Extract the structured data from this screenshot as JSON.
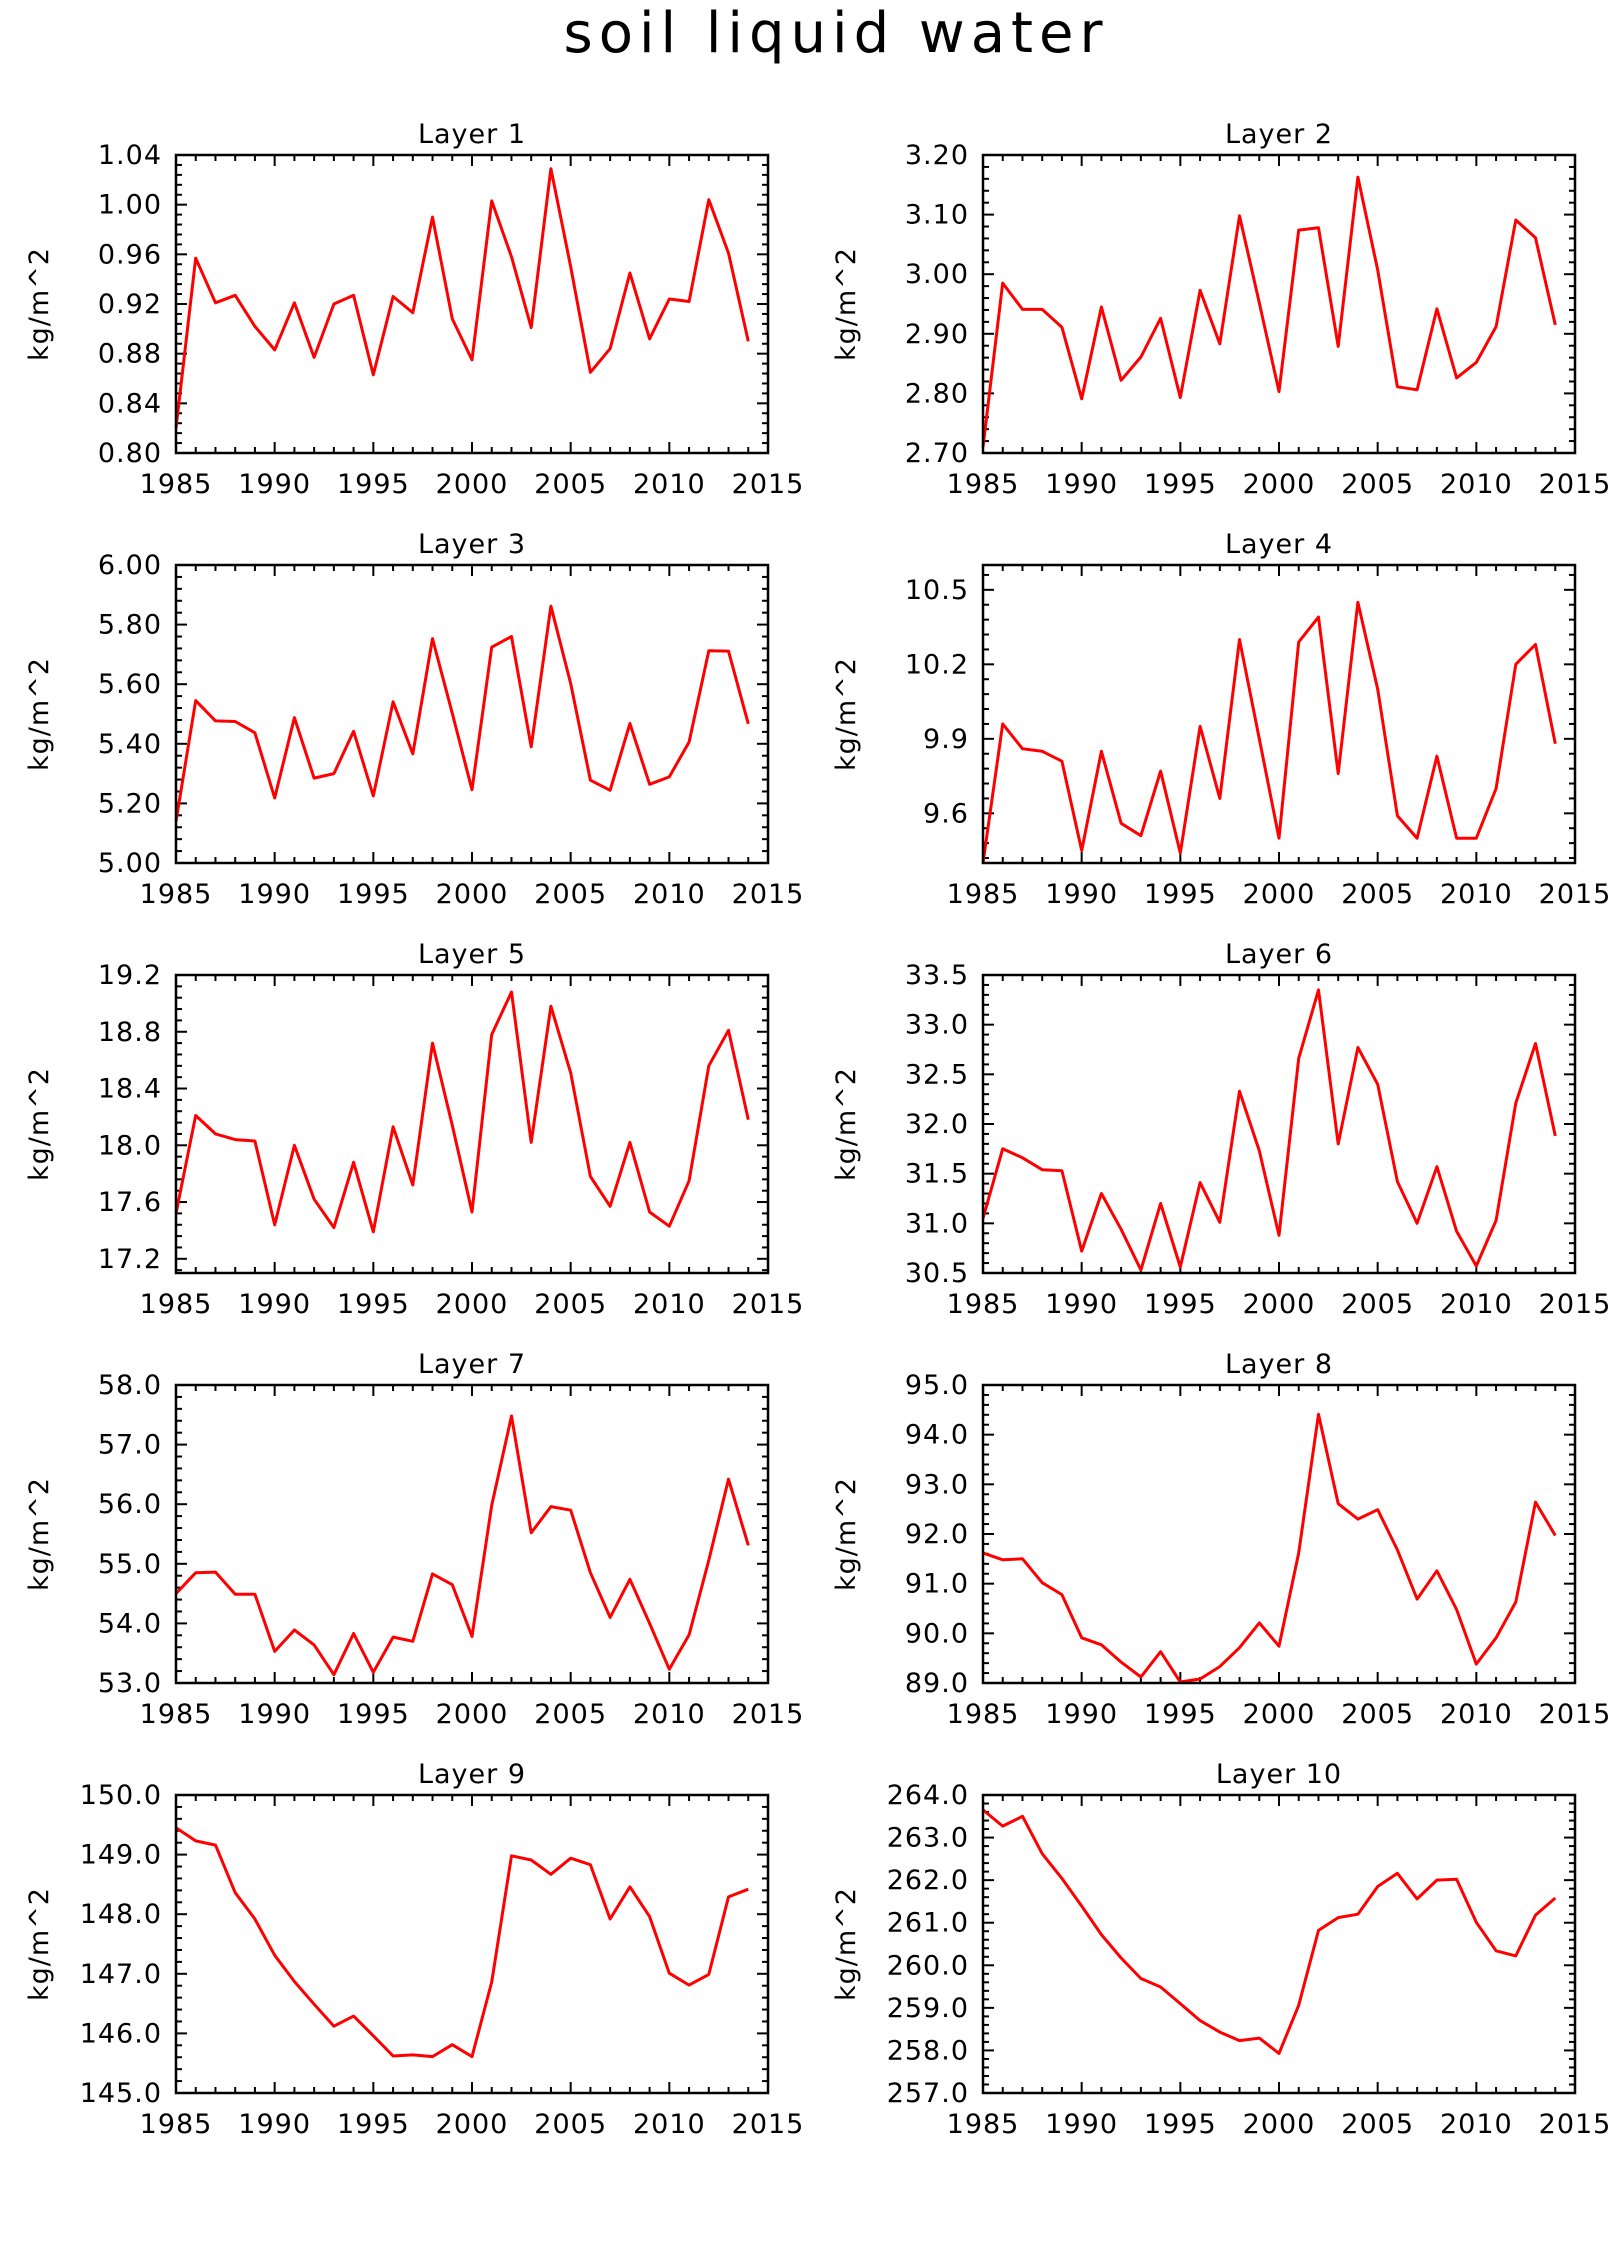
{
  "title": "soil liquid water",
  "footer_label": "",
  "chart_data": [
    {
      "type": "line",
      "title": "Layer 1",
      "ylabel": "kg/m^2",
      "x": [
        1985,
        1986,
        1987,
        1988,
        1989,
        1990,
        1991,
        1992,
        1993,
        1994,
        1995,
        1996,
        1997,
        1998,
        1999,
        2000,
        2001,
        2002,
        2003,
        2004,
        2005,
        2006,
        2007,
        2008,
        2009,
        2010,
        2011,
        2012,
        2013,
        2014
      ],
      "values": [
        0.82,
        0.957,
        0.921,
        0.927,
        0.902,
        0.883,
        0.921,
        0.877,
        0.92,
        0.927,
        0.863,
        0.926,
        0.913,
        0.99,
        0.908,
        0.875,
        1.003,
        0.958,
        0.901,
        1.029,
        0.95,
        0.865,
        0.884,
        0.945,
        0.892,
        0.924,
        0.922,
        1.004,
        0.961,
        0.89
      ],
      "ylim": [
        0.8,
        1.04
      ],
      "yticks": [
        "0.80",
        "0.84",
        "0.88",
        "0.92",
        "0.96",
        "1.00",
        "1.04"
      ],
      "xlim": [
        1985,
        2015
      ],
      "xticks": [
        "1985",
        "1990",
        "1995",
        "2000",
        "2005",
        "2010",
        "2015"
      ],
      "color": "#ff0000"
    },
    {
      "type": "line",
      "title": "Layer 2",
      "ylabel": "kg/m^2",
      "x": [
        1985,
        1986,
        1987,
        1988,
        1989,
        1990,
        1991,
        1992,
        1993,
        1994,
        1995,
        1996,
        1997,
        1998,
        1999,
        2000,
        2001,
        2002,
        2003,
        2004,
        2005,
        2006,
        2007,
        2008,
        2009,
        2010,
        2011,
        2012,
        2013,
        2014
      ],
      "values": [
        2.71,
        2.985,
        2.941,
        2.941,
        2.911,
        2.791,
        2.945,
        2.822,
        2.861,
        2.926,
        2.793,
        2.973,
        2.883,
        3.098,
        2.952,
        2.803,
        3.074,
        3.078,
        2.879,
        3.163,
        3.007,
        2.811,
        2.806,
        2.942,
        2.826,
        2.852,
        2.912,
        3.091,
        3.061,
        2.915
      ],
      "ylim": [
        2.7,
        3.2
      ],
      "yticks": [
        "2.70",
        "2.80",
        "2.90",
        "3.00",
        "3.10",
        "3.20"
      ],
      "xlim": [
        1985,
        2015
      ],
      "xticks": [
        "1985",
        "1990",
        "1995",
        "2000",
        "2005",
        "2010",
        "2015"
      ],
      "color": "#ff0000"
    },
    {
      "type": "line",
      "title": "Layer 3",
      "ylabel": "kg/m^2",
      "x": [
        1985,
        1986,
        1987,
        1988,
        1989,
        1990,
        1991,
        1992,
        1993,
        1994,
        1995,
        1996,
        1997,
        1998,
        1999,
        2000,
        2001,
        2002,
        2003,
        2004,
        2005,
        2006,
        2007,
        2008,
        2009,
        2010,
        2011,
        2012,
        2013,
        2014
      ],
      "values": [
        5.14,
        5.545,
        5.477,
        5.475,
        5.437,
        5.218,
        5.488,
        5.285,
        5.3,
        5.442,
        5.225,
        5.541,
        5.366,
        5.753,
        5.502,
        5.246,
        5.724,
        5.76,
        5.39,
        5.862,
        5.602,
        5.278,
        5.244,
        5.468,
        5.264,
        5.289,
        5.406,
        5.712,
        5.711,
        5.467
      ],
      "ylim": [
        5.0,
        6.0
      ],
      "yticks": [
        "5.00",
        "5.20",
        "5.40",
        "5.60",
        "5.80",
        "6.00"
      ],
      "xlim": [
        1985,
        2015
      ],
      "xticks": [
        "1985",
        "1990",
        "1995",
        "2000",
        "2005",
        "2010",
        "2015"
      ],
      "color": "#ff0000"
    },
    {
      "type": "line",
      "title": "Layer 4",
      "ylabel": "kg/m^2",
      "x": [
        1985,
        1986,
        1987,
        1988,
        1989,
        1990,
        1991,
        1992,
        1993,
        1994,
        1995,
        1996,
        1997,
        1998,
        1999,
        2000,
        2001,
        2002,
        2003,
        2004,
        2005,
        2006,
        2007,
        2008,
        2009,
        2010,
        2011,
        2012,
        2013,
        2014
      ],
      "values": [
        9.4,
        9.96,
        9.86,
        9.85,
        9.81,
        9.45,
        9.85,
        9.56,
        9.51,
        9.77,
        9.44,
        9.95,
        9.66,
        10.3,
        9.9,
        9.5,
        10.29,
        10.39,
        9.76,
        10.45,
        10.1,
        9.59,
        9.5,
        9.83,
        9.5,
        9.5,
        9.7,
        10.2,
        10.28,
        9.88
      ],
      "ylim": [
        9.4,
        10.6
      ],
      "yticks": [
        "9.6",
        "9.9",
        "10.2",
        "10.5"
      ],
      "xlim": [
        1985,
        2015
      ],
      "xticks": [
        "1985",
        "1990",
        "1995",
        "2000",
        "2005",
        "2010",
        "2015"
      ],
      "color": "#ff0000"
    },
    {
      "type": "line",
      "title": "Layer 5",
      "ylabel": "kg/m^2",
      "x": [
        1985,
        1986,
        1987,
        1988,
        1989,
        1990,
        1991,
        1992,
        1993,
        1994,
        1995,
        1996,
        1997,
        1998,
        1999,
        2000,
        2001,
        2002,
        2003,
        2004,
        2005,
        2006,
        2007,
        2008,
        2009,
        2010,
        2011,
        2012,
        2013,
        2014
      ],
      "values": [
        17.52,
        18.21,
        18.08,
        18.04,
        18.03,
        17.44,
        18.0,
        17.62,
        17.42,
        17.88,
        17.39,
        18.13,
        17.72,
        18.72,
        18.14,
        17.53,
        18.78,
        19.08,
        18.02,
        18.98,
        18.51,
        17.78,
        17.57,
        18.02,
        17.53,
        17.43,
        17.75,
        18.56,
        18.81,
        18.18
      ],
      "ylim": [
        17.1,
        19.2
      ],
      "yticks": [
        "17.2",
        "17.6",
        "18.0",
        "18.4",
        "18.8",
        "19.2"
      ],
      "xlim": [
        1985,
        2015
      ],
      "xticks": [
        "1985",
        "1990",
        "1995",
        "2000",
        "2005",
        "2010",
        "2015"
      ],
      "color": "#ff0000"
    },
    {
      "type": "line",
      "title": "Layer 6",
      "ylabel": "kg/m^2",
      "x": [
        1985,
        1986,
        1987,
        1988,
        1989,
        1990,
        1991,
        1992,
        1993,
        1994,
        1995,
        1996,
        1997,
        1998,
        1999,
        2000,
        2001,
        2002,
        2003,
        2004,
        2005,
        2006,
        2007,
        2008,
        2009,
        2010,
        2011,
        2012,
        2013,
        2014
      ],
      "values": [
        31.05,
        31.75,
        31.66,
        31.54,
        31.53,
        30.72,
        31.3,
        30.94,
        30.53,
        31.2,
        30.56,
        31.41,
        31.01,
        32.33,
        31.73,
        30.88,
        32.66,
        33.35,
        31.8,
        32.77,
        32.4,
        31.42,
        31.0,
        31.57,
        30.92,
        30.57,
        31.03,
        32.21,
        32.81,
        31.88
      ],
      "ylim": [
        30.5,
        33.5
      ],
      "yticks": [
        "30.5",
        "31.0",
        "31.5",
        "32.0",
        "32.5",
        "33.0",
        "33.5"
      ],
      "xlim": [
        1985,
        2015
      ],
      "xticks": [
        "1985",
        "1990",
        "1995",
        "2000",
        "2005",
        "2010",
        "2015"
      ],
      "color": "#ff0000"
    },
    {
      "type": "line",
      "title": "Layer 7",
      "ylabel": "kg/m^2",
      "x": [
        1985,
        1986,
        1987,
        1988,
        1989,
        1990,
        1991,
        1992,
        1993,
        1994,
        1995,
        1996,
        1997,
        1998,
        1999,
        2000,
        2001,
        2002,
        2003,
        2004,
        2005,
        2006,
        2007,
        2008,
        2009,
        2010,
        2011,
        2012,
        2013,
        2014
      ],
      "values": [
        54.5,
        54.85,
        54.86,
        54.49,
        54.49,
        53.53,
        53.89,
        53.64,
        53.14,
        53.83,
        53.18,
        53.77,
        53.7,
        54.83,
        54.65,
        53.78,
        55.98,
        57.48,
        55.52,
        55.96,
        55.9,
        54.85,
        54.1,
        54.74,
        54.0,
        53.23,
        53.81,
        55.06,
        56.42,
        55.31
      ],
      "ylim": [
        53.0,
        58.0
      ],
      "yticks": [
        "53.0",
        "54.0",
        "55.0",
        "56.0",
        "57.0",
        "58.0"
      ],
      "xlim": [
        1985,
        2015
      ],
      "xticks": [
        "1985",
        "1990",
        "1995",
        "2000",
        "2005",
        "2010",
        "2015"
      ],
      "color": "#ff0000"
    },
    {
      "type": "line",
      "title": "Layer 8",
      "ylabel": "kg/m^2",
      "x": [
        1985,
        1986,
        1987,
        1988,
        1989,
        1990,
        1991,
        1992,
        1993,
        1994,
        1995,
        1996,
        1997,
        1998,
        1999,
        2000,
        2001,
        2002,
        2003,
        2004,
        2005,
        2006,
        2007,
        2008,
        2009,
        2010,
        2011,
        2012,
        2013,
        2014
      ],
      "values": [
        91.62,
        91.48,
        91.5,
        91.02,
        90.78,
        89.91,
        89.77,
        89.42,
        89.12,
        89.63,
        89.02,
        89.08,
        89.33,
        89.71,
        90.21,
        89.74,
        91.62,
        94.41,
        92.61,
        92.3,
        92.49,
        91.68,
        90.69,
        91.26,
        90.48,
        89.38,
        89.91,
        90.63,
        92.64,
        91.97
      ],
      "ylim": [
        89.0,
        95.0
      ],
      "yticks": [
        "89.0",
        "90.0",
        "91.0",
        "92.0",
        "93.0",
        "94.0",
        "95.0"
      ],
      "xlim": [
        1985,
        2015
      ],
      "xticks": [
        "1985",
        "1990",
        "1995",
        "2000",
        "2005",
        "2010",
        "2015"
      ],
      "color": "#ff0000"
    },
    {
      "type": "line",
      "title": "Layer 9",
      "ylabel": "kg/m^2",
      "x": [
        1985,
        1986,
        1987,
        1988,
        1989,
        1990,
        1991,
        1992,
        1993,
        1994,
        1995,
        1996,
        1997,
        1998,
        1999,
        2000,
        2001,
        2002,
        2003,
        2004,
        2005,
        2006,
        2007,
        2008,
        2009,
        2010,
        2011,
        2012,
        2013,
        2014
      ],
      "values": [
        149.45,
        149.23,
        149.16,
        148.36,
        147.92,
        147.31,
        146.87,
        146.49,
        146.12,
        146.29,
        145.96,
        145.62,
        145.64,
        145.61,
        145.81,
        145.61,
        146.86,
        148.98,
        148.91,
        148.67,
        148.94,
        148.83,
        147.92,
        148.46,
        147.96,
        147.01,
        146.81,
        146.99,
        148.29,
        148.42
      ],
      "ylim": [
        145.0,
        150.0
      ],
      "yticks": [
        "145.0",
        "146.0",
        "147.0",
        "148.0",
        "149.0",
        "150.0"
      ],
      "xlim": [
        1985,
        2015
      ],
      "xticks": [
        "1985",
        "1990",
        "1995",
        "2000",
        "2005",
        "2010",
        "2015"
      ],
      "color": "#ff0000"
    },
    {
      "type": "line",
      "title": "Layer 10",
      "ylabel": "kg/m^2",
      "x": [
        1985,
        1986,
        1987,
        1988,
        1989,
        1990,
        1991,
        1992,
        1993,
        1994,
        1995,
        1996,
        1997,
        1998,
        1999,
        2000,
        2001,
        2002,
        2003,
        2004,
        2005,
        2006,
        2007,
        2008,
        2009,
        2010,
        2011,
        2012,
        2013,
        2014
      ],
      "values": [
        263.65,
        263.27,
        263.5,
        262.62,
        262.04,
        261.39,
        260.72,
        260.17,
        259.69,
        259.49,
        259.1,
        258.7,
        258.43,
        258.23,
        258.29,
        257.93,
        259.06,
        260.82,
        261.12,
        261.2,
        261.85,
        262.16,
        261.56,
        262.0,
        262.02,
        261.01,
        260.34,
        260.22,
        261.18,
        261.58
      ],
      "ylim": [
        257.0,
        264.0
      ],
      "yticks": [
        "257.0",
        "258.0",
        "259.0",
        "260.0",
        "261.0",
        "262.0",
        "263.0",
        "264.0"
      ],
      "xlim": [
        1985,
        2015
      ],
      "xticks": [
        "1985",
        "1990",
        "1995",
        "2000",
        "2005",
        "2010",
        "2015"
      ],
      "color": "#ff0000"
    }
  ]
}
